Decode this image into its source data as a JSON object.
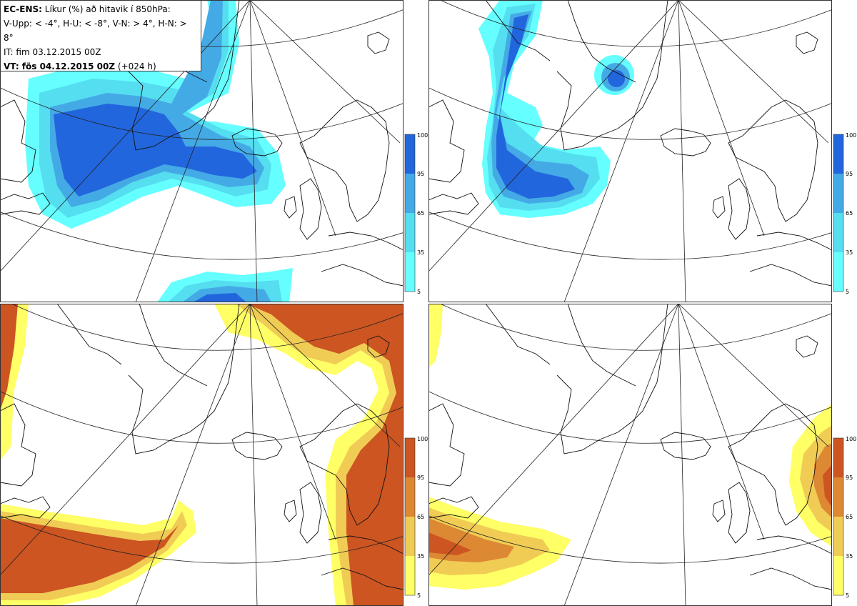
{
  "header": {
    "line1_bold": "EC-ENS:",
    "line1_rest": " Líkur (%) að hitavik í 850hPa:",
    "line2": "V-Upp: < -4°, H-U: < -8°, V-N: > 4°, H-N: > 8°",
    "line3": "IT: fim 03.12.2015 00Z",
    "line4_bold": "VT: fös 04.12.2015 00Z",
    "line4_rest": " (+024 h)"
  },
  "colorbar": {
    "ticks": [
      "100",
      "95",
      "65",
      "35",
      "5"
    ],
    "cold_colors": [
      "#66ffff",
      "#55ddf0",
      "#44aae6",
      "#2266dd"
    ],
    "warm_colors": [
      "#ffff66",
      "#f0cc55",
      "#dd8833",
      "#cc5522"
    ]
  },
  "panels": [
    {
      "key": "upper-left",
      "scheme": "cold"
    },
    {
      "key": "upper-right",
      "scheme": "cold"
    },
    {
      "key": "lower-left",
      "scheme": "warm"
    },
    {
      "key": "lower-right",
      "scheme": "warm"
    }
  ]
}
